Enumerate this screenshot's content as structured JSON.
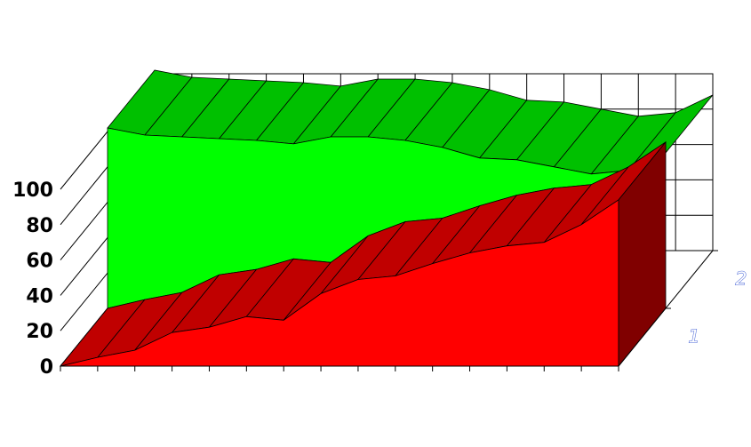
{
  "chart_data": {
    "type": "area",
    "style": "3d-stacked",
    "x": [
      0,
      1,
      2,
      3,
      4,
      5,
      6,
      7,
      8,
      9,
      10,
      11,
      12,
      13,
      14,
      15
    ],
    "series": [
      {
        "name": "1",
        "color": "#ff0000",
        "side_color": "#c00000",
        "end_color": "#800000",
        "values": [
          0,
          5,
          9,
          19,
          22,
          28,
          26,
          41,
          49,
          51,
          58,
          64,
          68,
          70,
          80,
          94
        ]
      },
      {
        "name": "2",
        "color": "#00ff00",
        "side_color": "#00c000",
        "values": [
          102,
          93,
          88,
          77,
          73,
          65,
          71,
          56,
          46,
          40,
          27,
          20,
          12,
          6,
          -2,
          -6
        ]
      }
    ],
    "yticks": [
      0,
      20,
      40,
      60,
      80,
      100
    ],
    "depth_labels": [
      "1",
      "2"
    ],
    "ylim": [
      0,
      100
    ],
    "grid": true,
    "legend": "none"
  }
}
